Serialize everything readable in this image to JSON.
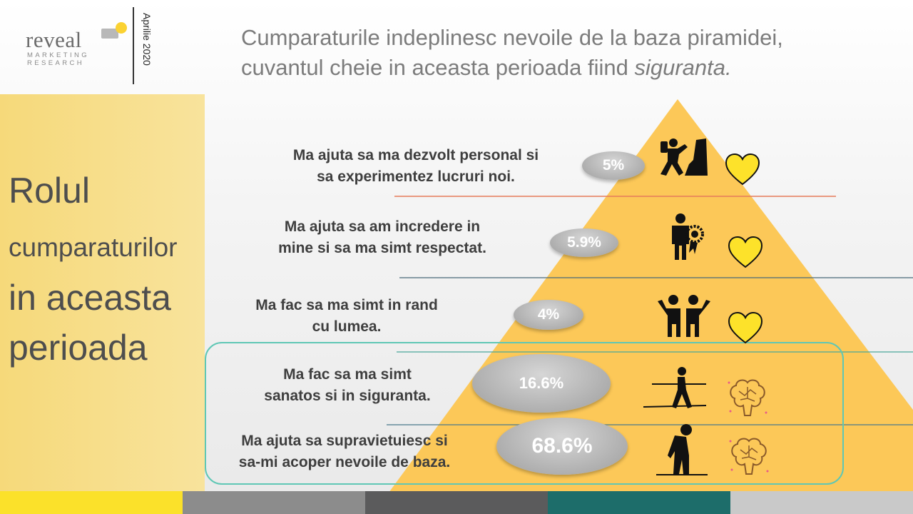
{
  "header": {
    "logo_word": "reveal",
    "logo_sub1": "MARKETING",
    "logo_sub2": "RESEARCH",
    "date": "Aprilie 2020",
    "title_line1": "Cumparaturile indeplinesc nevoile de la baza piramidei,",
    "title_line2_prefix": "cuvantul cheie in aceasta perioada fiind ",
    "title_line2_emphasis": "siguranta."
  },
  "side_panel": {
    "line1": "Rolul",
    "line2": "cumparaturilor",
    "line3": "in aceasta",
    "line4": "perioada"
  },
  "chart_data": {
    "type": "pyramid",
    "categories": [
      "Ma ajuta sa ma dezvolt personal si sa experimentez lucruri noi.",
      "Ma ajuta sa am incredere in mine si sa ma simt respectat.",
      "Ma fac sa ma simt in rand cu lumea.",
      "Ma fac sa ma simt sanatos si in siguranta.",
      "Ma ajuta sa supravietuiesc si sa-mi acoper nevoile de baza."
    ],
    "values": [
      5,
      5.9,
      4,
      16.6,
      68.6
    ],
    "value_labels": [
      "5%",
      "5.9%",
      "4%",
      "16.6%",
      "68.6%"
    ],
    "highlighted_levels": [
      3,
      4
    ],
    "right_icons": [
      "heart-icon",
      "heart-icon",
      "heart-icon",
      "brain-icon",
      "brain-icon"
    ],
    "level_icons": [
      "climber-icon",
      "award-person-icon",
      "two-people-icon",
      "tightrope-walker-icon",
      "tired-person-icon"
    ]
  },
  "levels": [
    {
      "line1": "Ma ajuta sa ma dezvolt personal si",
      "line2": "sa experimentez lucruri noi."
    },
    {
      "line1": "Ma ajuta sa am incredere in",
      "line2": "mine si sa ma simt respectat."
    },
    {
      "line1": "Ma fac sa ma simt in rand",
      "line2": "cu lumea."
    },
    {
      "line1": "Ma fac sa ma simt",
      "line2": "sanatos si in siguranta."
    },
    {
      "line1": "Ma ajuta sa supravietuiesc si",
      "line2": "sa-mi acoper nevoile de baza."
    }
  ],
  "colors": {
    "pyramid": "#fcc858",
    "panel": "#f7de89",
    "accent_teal": "#5fc7b5",
    "pill_text": "#ffffff",
    "heart": "#fde22a",
    "bottom_bar": [
      "#fbe12a",
      "#8c8c8c",
      "#5b5b5c",
      "#1d6d6a",
      "#c9c9c9"
    ]
  }
}
